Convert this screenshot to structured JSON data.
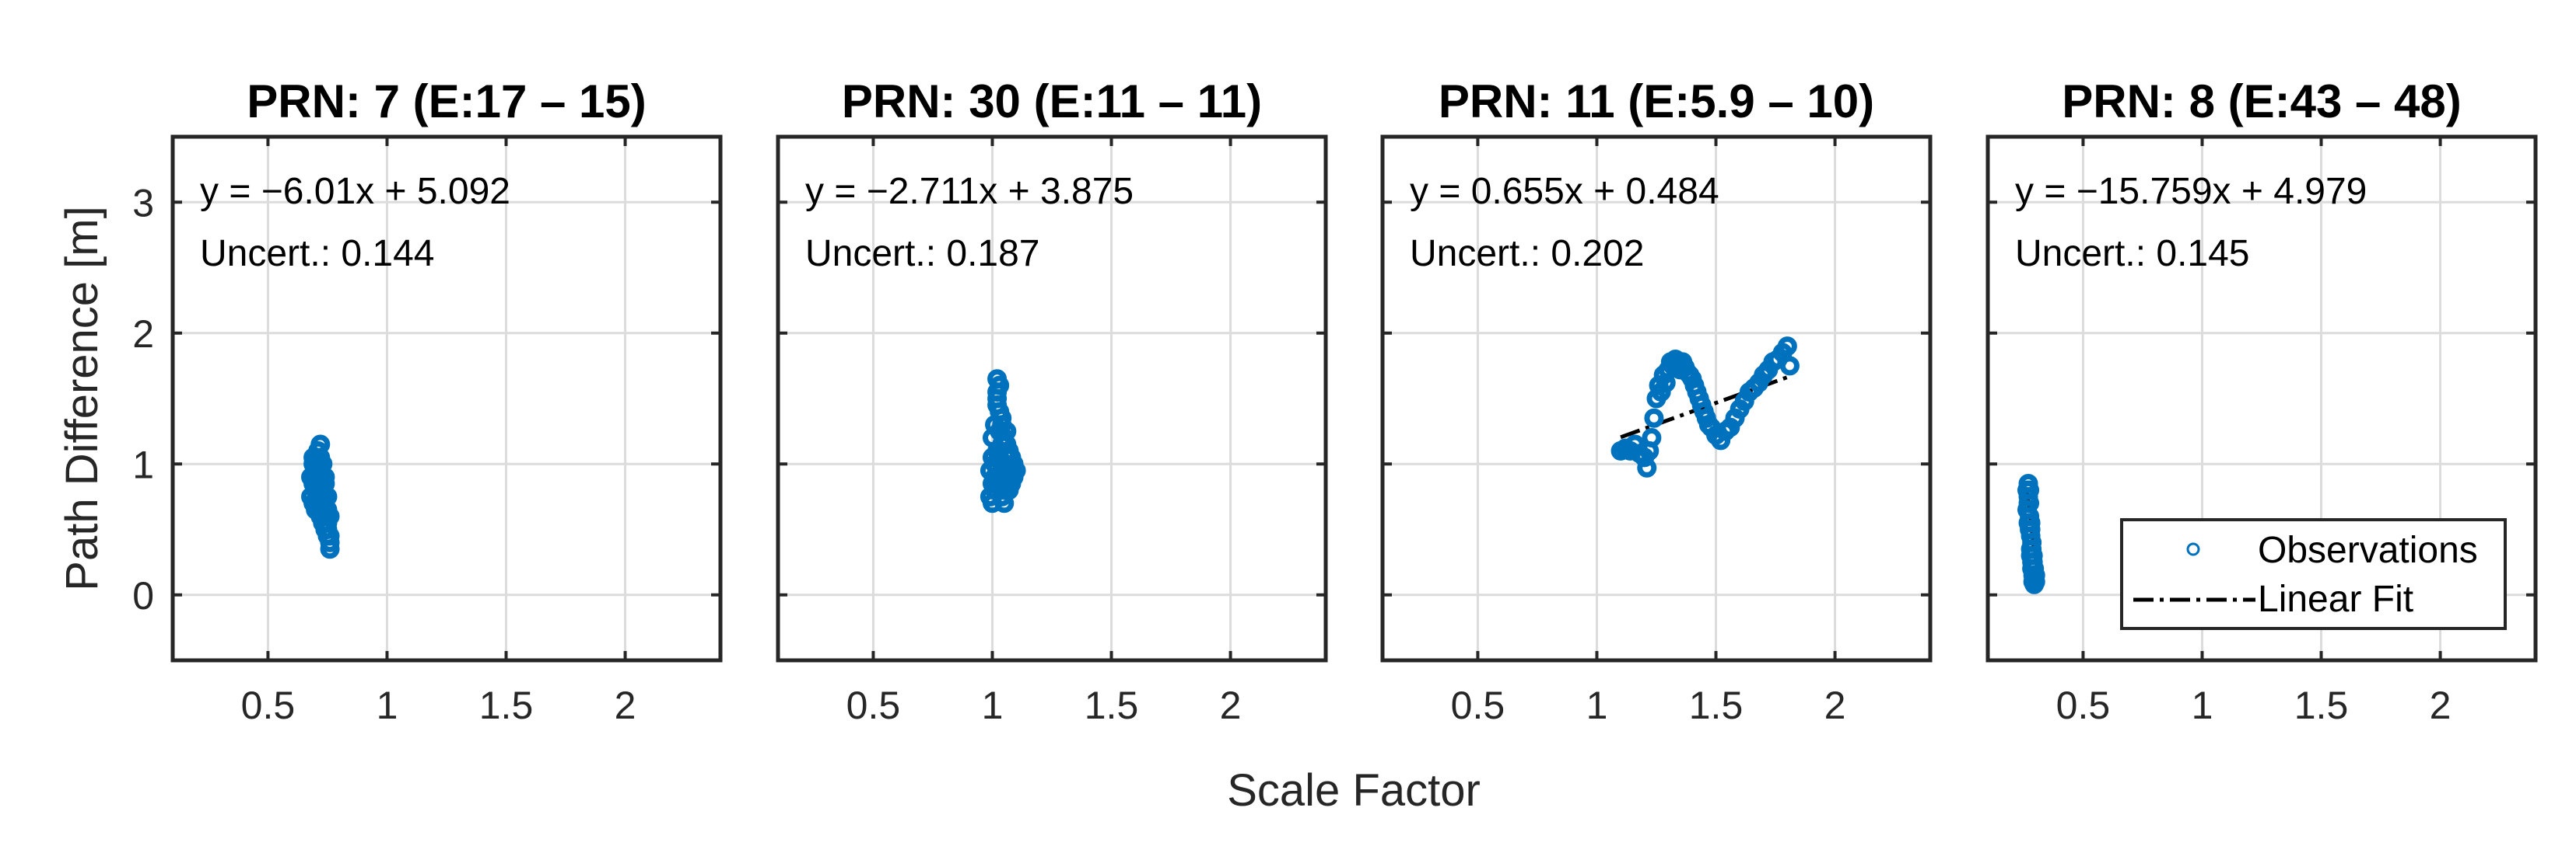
{
  "chart_data": {
    "type": "scatter",
    "xlabel": "Scale Factor",
    "ylabel": "Path Difference [m]",
    "xlim": [
      0.1,
      2.4
    ],
    "ylim": [
      -0.5,
      3.5
    ],
    "xticks": [
      0.5,
      1,
      1.5,
      2
    ],
    "xtick_labels": [
      "0.5",
      "1",
      "1.5",
      "2"
    ],
    "yticks": [
      0,
      1,
      2,
      3
    ],
    "ytick_labels": [
      "0",
      "1",
      "2",
      "3"
    ],
    "grid": true,
    "colors": {
      "observations": "#0072BD",
      "fit": "#000000"
    },
    "legend": {
      "location": "bottom-right",
      "panel_index": 3,
      "entries": [
        {
          "label": "Observations",
          "marker": "circle"
        },
        {
          "label": "Linear Fit",
          "style": "dash-dot"
        }
      ]
    },
    "panels": [
      {
        "title": "PRN: 7 (E:17 – 15)",
        "equation": "y = −6.01x + 5.092",
        "uncertainty": "Uncert.: 0.144",
        "fit": {
          "slope": -6.01,
          "intercept": 5.092,
          "x_range": [
            0.68,
            0.76
          ]
        },
        "observations": {
          "x": [
            0.68,
            0.68,
            0.69,
            0.69,
            0.69,
            0.7,
            0.7,
            0.7,
            0.7,
            0.71,
            0.71,
            0.71,
            0.71,
            0.71,
            0.72,
            0.72,
            0.72,
            0.72,
            0.72,
            0.72,
            0.73,
            0.73,
            0.73,
            0.73,
            0.73,
            0.73,
            0.74,
            0.74,
            0.74,
            0.74,
            0.74,
            0.75,
            0.75,
            0.75,
            0.75,
            0.76,
            0.76,
            0.76,
            0.69,
            0.7,
            0.71,
            0.72,
            0.73,
            0.74,
            0.75,
            0.76
          ],
          "y": [
            0.75,
            0.9,
            0.7,
            0.85,
            1.0,
            0.8,
            0.95,
            1.05,
            0.65,
            0.85,
            1.0,
            0.75,
            1.1,
            0.9,
            0.8,
            0.95,
            1.15,
            0.7,
            0.6,
            1.05,
            0.85,
            0.75,
            0.9,
            0.65,
            1.0,
            0.55,
            0.7,
            0.85,
            0.6,
            0.5,
            0.9,
            0.65,
            0.45,
            0.75,
            0.55,
            0.4,
            0.6,
            0.35,
            1.05,
            0.9,
            0.8,
            0.7,
            0.6,
            0.75,
            0.5,
            0.45
          ]
        }
      },
      {
        "title": "PRN: 30 (E:11 – 11)",
        "equation": "y = −2.711x + 3.875",
        "uncertainty": "Uncert.: 0.187",
        "fit": {
          "slope": -2.711,
          "intercept": 3.875,
          "x_range": [
            1.0,
            1.1
          ]
        },
        "observations": {
          "x": [
            0.99,
            0.99,
            1.0,
            1.0,
            1.0,
            1.0,
            1.01,
            1.01,
            1.01,
            1.02,
            1.02,
            1.02,
            1.02,
            1.02,
            1.03,
            1.03,
            1.03,
            1.03,
            1.04,
            1.04,
            1.04,
            1.04,
            1.05,
            1.05,
            1.05,
            1.06,
            1.06,
            1.06,
            1.07,
            1.07,
            1.07,
            1.08,
            1.08,
            1.09,
            1.09,
            1.1,
            1.02,
            1.03,
            1.04,
            1.01,
            1.05,
            1.06
          ],
          "y": [
            0.75,
            0.95,
            0.7,
            0.85,
            1.05,
            1.2,
            0.8,
            1.0,
            1.3,
            0.9,
            1.1,
            1.45,
            1.65,
            1.55,
            0.85,
            1.05,
            1.25,
            1.4,
            0.75,
            0.95,
            1.15,
            1.35,
            0.8,
            1.0,
            1.2,
            0.85,
            1.05,
            1.25,
            0.8,
            0.95,
            1.1,
            0.85,
            1.05,
            0.9,
            1.0,
            0.95,
            1.5,
            1.6,
            1.3,
            0.9,
            0.7,
            1.15
          ]
        }
      },
      {
        "title": "PRN: 11 (E:5.9 – 10)",
        "equation": "y = 0.655x + 0.484",
        "uncertainty": "Uncert.: 0.202",
        "fit": {
          "slope": 0.655,
          "intercept": 0.484,
          "x_range": [
            1.1,
            1.82
          ]
        },
        "observations": {
          "x": [
            1.1,
            1.12,
            1.14,
            1.16,
            1.18,
            1.2,
            1.21,
            1.22,
            1.23,
            1.24,
            1.25,
            1.26,
            1.27,
            1.28,
            1.29,
            1.3,
            1.31,
            1.32,
            1.33,
            1.34,
            1.35,
            1.36,
            1.37,
            1.38,
            1.39,
            1.4,
            1.41,
            1.42,
            1.43,
            1.44,
            1.45,
            1.46,
            1.47,
            1.48,
            1.5,
            1.52,
            1.54,
            1.56,
            1.58,
            1.6,
            1.62,
            1.64,
            1.66,
            1.68,
            1.7,
            1.72,
            1.74,
            1.76,
            1.78,
            1.8,
            1.81
          ],
          "y": [
            1.1,
            1.12,
            1.1,
            1.15,
            1.08,
            1.05,
            0.97,
            1.1,
            1.2,
            1.35,
            1.5,
            1.6,
            1.55,
            1.68,
            1.62,
            1.72,
            1.78,
            1.75,
            1.8,
            1.76,
            1.72,
            1.78,
            1.74,
            1.7,
            1.68,
            1.65,
            1.6,
            1.55,
            1.5,
            1.45,
            1.4,
            1.35,
            1.3,
            1.28,
            1.22,
            1.18,
            1.25,
            1.28,
            1.35,
            1.42,
            1.48,
            1.55,
            1.58,
            1.62,
            1.68,
            1.72,
            1.78,
            1.8,
            1.85,
            1.9,
            1.75
          ]
        }
      },
      {
        "title": "PRN: 8 (E:43 – 48)",
        "equation": "y = −15.759x + 4.979",
        "uncertainty": "Uncert.: 0.145",
        "fit": {
          "slope": -15.759,
          "intercept": 4.979,
          "x_range": [
            0.266,
            0.3
          ]
        },
        "observations": {
          "x": [
            0.265,
            0.265,
            0.27,
            0.27,
            0.27,
            0.275,
            0.275,
            0.275,
            0.28,
            0.28,
            0.28,
            0.28,
            0.285,
            0.285,
            0.285,
            0.29,
            0.29,
            0.29,
            0.295,
            0.295,
            0.3,
            0.3,
            0.27,
            0.28,
            0.29,
            0.275,
            0.285,
            0.295
          ],
          "y": [
            0.65,
            0.8,
            0.55,
            0.75,
            0.85,
            0.5,
            0.7,
            0.6,
            0.35,
            0.55,
            0.45,
            0.3,
            0.25,
            0.4,
            0.2,
            0.15,
            0.3,
            0.1,
            0.08,
            0.2,
            0.1,
            0.15,
            0.7,
            0.5,
            0.25,
            0.8,
            0.35,
            0.12
          ]
        }
      }
    ]
  }
}
